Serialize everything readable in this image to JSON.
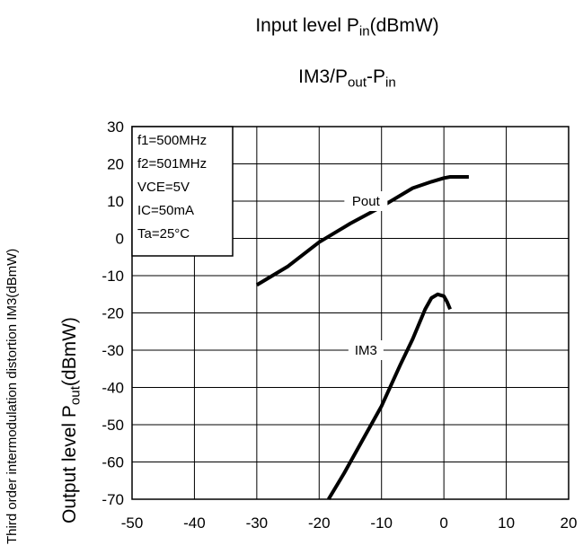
{
  "title_line1": {
    "pre": "Input level P",
    "sub": "in",
    "post": "(dBmW)"
  },
  "title_line2": {
    "a": "IM3/P",
    "a_sub": "out",
    "b": "-P",
    "b_sub": "in"
  },
  "ylabel_outer": "Third order intermodulation distortion IM3(dBmW)",
  "ylabel_inner": {
    "pre": "Output level P",
    "sub": "out",
    "post": "(dBmW)"
  },
  "conditions": [
    "f1=500MHz",
    "f2=501MHz",
    "VCE=5V",
    "IC=50mA",
    "Ta=25°C"
  ],
  "chart_data": {
    "type": "line",
    "xlim": [
      -50,
      20
    ],
    "ylim": [
      -70,
      30
    ],
    "xticks": [
      -50,
      -40,
      -30,
      -20,
      -10,
      0,
      10,
      20
    ],
    "yticks": [
      30,
      20,
      10,
      0,
      -10,
      -20,
      -30,
      -40,
      -50,
      -60,
      -70
    ],
    "grid": true,
    "legend_placement": "top-left",
    "series": [
      {
        "name": "Pout",
        "x": [
          -30,
          -25,
          -20,
          -15,
          -10,
          -5,
          -2,
          0,
          1,
          4
        ],
        "y": [
          -12.5,
          -7.5,
          -1,
          4,
          8.5,
          13.5,
          15.2,
          16.2,
          16.5,
          16.5
        ]
      },
      {
        "name": "IM3",
        "x": [
          -18.5,
          -16,
          -13,
          -10,
          -7,
          -5,
          -3,
          -2,
          -1,
          0,
          0.5,
          1
        ],
        "y": [
          -70,
          -63,
          -54,
          -45,
          -34,
          -27,
          -19,
          -16,
          -15,
          -15.5,
          -17,
          -19
        ]
      }
    ]
  }
}
